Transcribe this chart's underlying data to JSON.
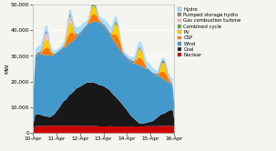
{
  "ylabel": "MW",
  "xlim": [
    0,
    144
  ],
  "ylim": [
    0,
    50000
  ],
  "yticks": [
    0,
    10000,
    20000,
    30000,
    40000,
    50000
  ],
  "ytick_labels": [
    "0",
    "10,000",
    "20,000",
    "30,000",
    "40,000",
    "50,000"
  ],
  "xtick_positions": [
    0,
    24,
    48,
    72,
    96,
    120,
    144
  ],
  "xtick_labels": [
    "10-Apr",
    "11-Apr",
    "12-Apr",
    "13-Apr",
    "14-Apr",
    "15-Apr",
    "16-Apr"
  ],
  "legend_labels": [
    "Hydro",
    "Pumped storage hydro",
    "Gas combustion turbine",
    "Combined cycle",
    "PV",
    "CSP",
    "Wind",
    "Coal",
    "Nuclear"
  ],
  "legend_colors": [
    "#aaddff",
    "#888888",
    "#ffbbcc",
    "#5aaa44",
    "#ffcc00",
    "#ff7700",
    "#4499cc",
    "#181818",
    "#cc0000"
  ],
  "background_color": "#f5f5ef",
  "grid_color": "#ffffff",
  "layer_colors": [
    "#cc0000",
    "#181818",
    "#4499cc",
    "#ff7700",
    "#ffcc00",
    "#5aaa44",
    "#ffbbcc",
    "#888888",
    "#aaddff"
  ]
}
